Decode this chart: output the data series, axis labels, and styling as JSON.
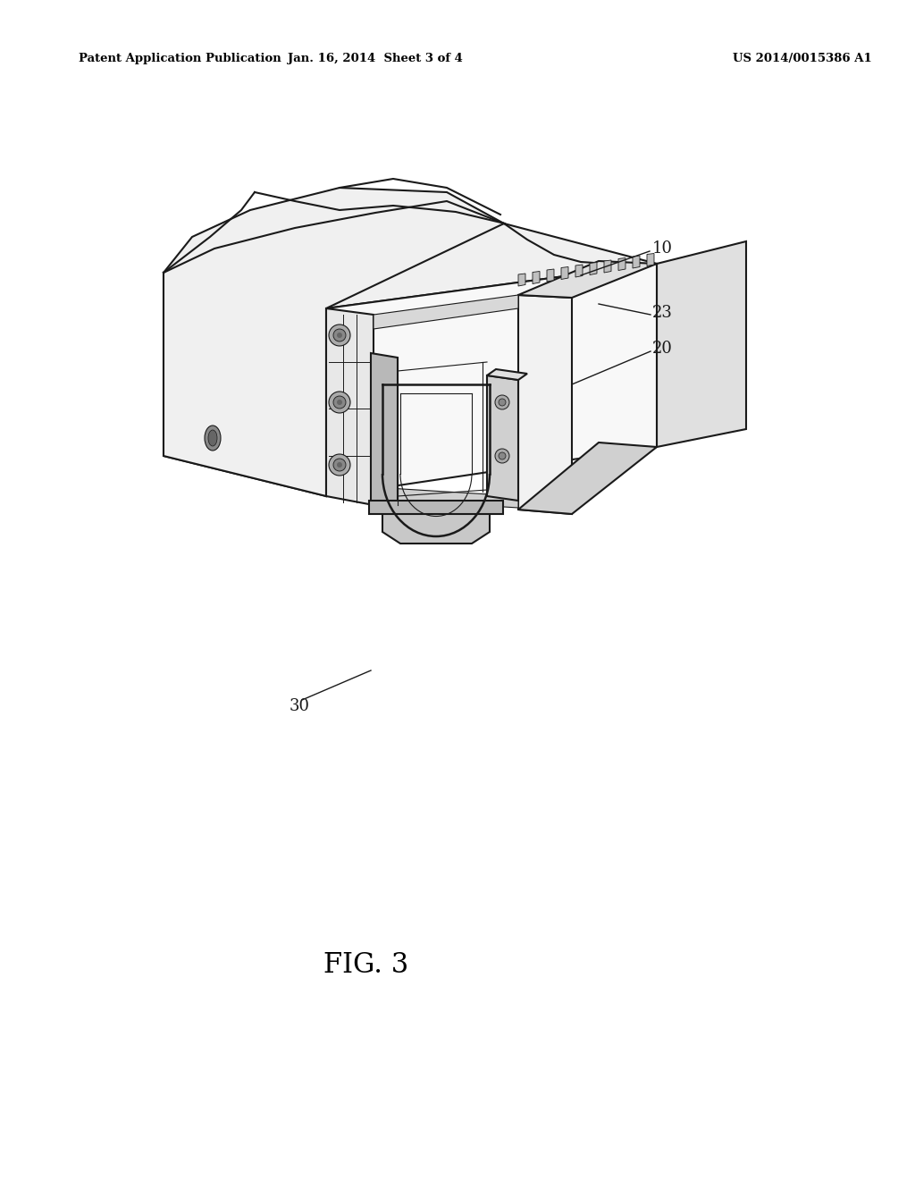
{
  "background_color": "#ffffff",
  "header_left": "Patent Application Publication",
  "header_center": "Jan. 16, 2014  Sheet 3 of 4",
  "header_right": "US 2014/0015386 A1",
  "figure_label": "FIG. 3",
  "lw_main": 1.5,
  "lw_thin": 0.8,
  "lw_leader": 1.0,
  "color_edge": "#1a1a1a",
  "color_fill_top": "#f0f0f0",
  "color_fill_side": "#e0e0e0",
  "color_fill_front": "#d8d8d8",
  "color_fill_dark": "#b8b8b8",
  "color_fill_medium": "#c8c8c8"
}
